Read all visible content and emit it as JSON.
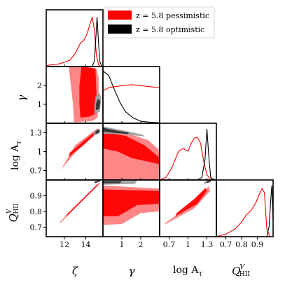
{
  "chart_data": {
    "type": "corner",
    "params": [
      {
        "label": "ζ",
        "ticks": [
          12,
          14
        ],
        "range": [
          10.3,
          15.6
        ]
      },
      {
        "label": "γ",
        "ticks": [
          1,
          2
        ],
        "range": [
          0.0,
          3.0
        ]
      },
      {
        "label": "log A",
        "sub": "τ",
        "ticks": [
          0.7,
          1.0,
          1.3
        ],
        "range": [
          0.55,
          1.45
        ]
      },
      {
        "label": "Q",
        "sup": "V",
        "sub": "HII",
        "ticks": [
          0.7,
          0.8,
          0.9
        ],
        "range": [
          0.64,
          1.0
        ]
      }
    ],
    "legend": [
      {
        "label": "z = 5.8 pessimistic",
        "color": "#ff0000"
      },
      {
        "label": "z = 5.8 optimistic",
        "color": "#000000"
      }
    ],
    "series": [
      {
        "name": "z = 5.8 pessimistic",
        "color": "#ff0000",
        "marginals": [
          {
            "x": [
              10.3,
              11.5,
              12.5,
              13.0,
              13.5,
              13.8,
              14.1,
              14.4,
              14.6,
              14.8,
              15.0,
              15.2,
              15.4
            ],
            "y": [
              0.02,
              0.05,
              0.12,
              0.25,
              0.45,
              0.5,
              0.62,
              0.82,
              0.95,
              0.7,
              0.2,
              0.03,
              0.0
            ]
          },
          {
            "x": [
              0.0,
              0.3,
              0.6,
              1.0,
              1.5,
              2.0,
              2.5,
              3.0
            ],
            "y": [
              0.62,
              0.68,
              0.7,
              0.72,
              0.74,
              0.72,
              0.7,
              0.68
            ]
          },
          {
            "x": [
              0.55,
              0.65,
              0.75,
              0.85,
              0.92,
              1.0,
              1.05,
              1.1,
              1.15,
              1.2,
              1.25,
              1.3,
              1.35,
              1.4
            ],
            "y": [
              0.0,
              0.05,
              0.25,
              0.55,
              0.6,
              0.55,
              0.7,
              0.8,
              0.82,
              0.7,
              0.35,
              0.1,
              0.02,
              0.0
            ]
          },
          {
            "x": [
              0.64,
              0.7,
              0.76,
              0.8,
              0.83,
              0.86,
              0.89,
              0.91,
              0.93,
              0.945,
              0.96,
              0.98
            ],
            "y": [
              0.0,
              0.05,
              0.15,
              0.28,
              0.42,
              0.5,
              0.65,
              0.8,
              0.92,
              0.85,
              0.15,
              0.0
            ]
          }
        ]
      },
      {
        "name": "z = 5.8 optimistic",
        "color": "#000000",
        "marginals": [
          {
            "x": [
              14.6,
              14.8,
              14.95,
              15.05,
              15.15,
              15.3,
              15.5
            ],
            "y": [
              0.0,
              0.1,
              0.6,
              0.95,
              0.6,
              0.1,
              0.0
            ]
          },
          {
            "x": [
              0.0,
              0.3,
              0.6,
              0.9,
              1.2,
              1.6,
              2.0,
              2.5,
              3.0
            ],
            "y": [
              1.0,
              0.92,
              0.65,
              0.4,
              0.22,
              0.1,
              0.04,
              0.02,
              0.01
            ]
          },
          {
            "x": [
              1.15,
              1.22,
              1.27,
              1.3,
              1.33,
              1.36,
              1.42
            ],
            "y": [
              0.0,
              0.05,
              0.4,
              0.98,
              0.45,
              0.05,
              0.0
            ]
          },
          {
            "x": [
              0.96,
              0.975,
              0.985,
              0.992,
              1.0
            ],
            "y": [
              0.0,
              0.2,
              0.7,
              0.98,
              0.3
            ]
          }
        ]
      }
    ]
  }
}
